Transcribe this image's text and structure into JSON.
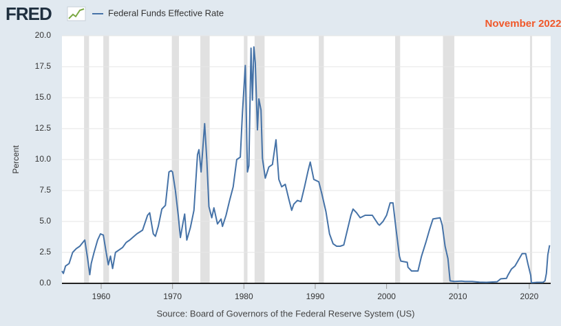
{
  "logo": "FRED",
  "chart_data": {
    "type": "line",
    "annotation": "November 2022",
    "ylabel": "Percent",
    "source": "Source: Board of Governors of the Federal Reserve System (US)",
    "grid": true,
    "xlim": [
      1954.5,
      2023.0
    ],
    "ylim": [
      0,
      20
    ],
    "xticks": [
      1960,
      1970,
      1980,
      1990,
      2000,
      2010,
      2020
    ],
    "yticks": [
      {
        "value": 0,
        "label": "0.0"
      },
      {
        "value": 2.5,
        "label": "2.5"
      },
      {
        "value": 5,
        "label": "5.0"
      },
      {
        "value": 7.5,
        "label": "7.5"
      },
      {
        "value": 10,
        "label": "10.0"
      },
      {
        "value": 12.5,
        "label": "12.5"
      },
      {
        "value": 15,
        "label": "15.0"
      },
      {
        "value": 17.5,
        "label": "17.5"
      },
      {
        "value": 20,
        "label": "20.0"
      }
    ],
    "recession_color": "#e1e1e1",
    "recessions": [
      [
        1957.6,
        1958.3
      ],
      [
        1960.3,
        1961.1
      ],
      [
        1969.9,
        1970.9
      ],
      [
        1973.9,
        1975.2
      ],
      [
        1980.0,
        1980.5
      ],
      [
        1981.5,
        1982.9
      ],
      [
        1990.5,
        1991.2
      ],
      [
        2001.2,
        2001.9
      ],
      [
        2007.9,
        2009.5
      ],
      [
        2020.1,
        2020.4
      ]
    ],
    "x": [
      1954.5,
      1954.7,
      1955,
      1955.5,
      1956,
      1956.5,
      1957,
      1957.7,
      1958.1,
      1958.4,
      1958.6,
      1959,
      1959.5,
      1959.9,
      1960.3,
      1960.7,
      1961,
      1961.3,
      1961.6,
      1962,
      1962.5,
      1963,
      1963.5,
      1964,
      1965,
      1965.8,
      1966.5,
      1966.8,
      1967.3,
      1967.6,
      1968,
      1968.5,
      1969,
      1969.5,
      1969.8,
      1970,
      1970.4,
      1970.8,
      1971.1,
      1971.5,
      1971.7,
      1972,
      1972.5,
      1973,
      1973.5,
      1973.7,
      1974,
      1974.5,
      1974.8,
      1975.1,
      1975.5,
      1975.8,
      1976.3,
      1976.8,
      1977,
      1977.5,
      1978,
      1978.5,
      1979,
      1979.5,
      1979.8,
      1980.2,
      1980.5,
      1980.7,
      1981,
      1981.2,
      1981.4,
      1981.6,
      1981.9,
      1982.1,
      1982.4,
      1982.6,
      1983,
      1983.5,
      1984,
      1984.5,
      1984.9,
      1985.3,
      1985.8,
      1986.3,
      1986.7,
      1987,
      1987.5,
      1988,
      1988.5,
      1989,
      1989.3,
      1989.8,
      1990.5,
      1990.9,
      1991.5,
      1992,
      1992.5,
      1993,
      1993.5,
      1994,
      1994.5,
      1995,
      1995.3,
      1995.8,
      1996.3,
      1997,
      1998,
      1998.8,
      1999,
      1999.5,
      2000,
      2000.5,
      2000.9,
      2001.3,
      2001.8,
      2002,
      2002.9,
      2003,
      2003.5,
      2004.4,
      2004.9,
      2005.5,
      2006,
      2006.5,
      2007.5,
      2007.8,
      2008.2,
      2008.6,
      2008.9,
      2009.5,
      2010.5,
      2011,
      2012,
      2013,
      2014,
      2015.5,
      2016,
      2016.8,
      2017,
      2017.5,
      2018,
      2018.5,
      2019,
      2019.5,
      2019.8,
      2020.2,
      2020.3,
      2021,
      2021.9,
      2022.2,
      2022.4,
      2022.6,
      2022.85
    ],
    "series": [
      {
        "name": "Federal Funds Effective Rate",
        "color": "#4572a7",
        "values": [
          1.0,
          0.8,
          1.4,
          1.6,
          2.5,
          2.8,
          3.0,
          3.5,
          2.0,
          0.7,
          1.6,
          2.5,
          3.5,
          4.0,
          3.9,
          2.5,
          1.5,
          2.2,
          1.2,
          2.5,
          2.7,
          2.9,
          3.3,
          3.5,
          4.0,
          4.3,
          5.5,
          5.7,
          4.0,
          3.8,
          4.6,
          6.0,
          6.3,
          9.0,
          9.1,
          9.0,
          7.5,
          5.5,
          3.7,
          5.0,
          5.6,
          3.5,
          4.5,
          5.9,
          10.4,
          10.8,
          9.0,
          12.9,
          10.0,
          6.2,
          5.3,
          6.1,
          4.8,
          5.2,
          4.6,
          5.5,
          6.7,
          7.8,
          10.0,
          10.2,
          13.8,
          17.6,
          9.0,
          9.5,
          19.0,
          14.8,
          19.1,
          17.8,
          12.4,
          14.9,
          14.0,
          10.1,
          8.5,
          9.4,
          9.6,
          11.6,
          8.4,
          7.8,
          8.0,
          6.8,
          5.9,
          6.4,
          6.7,
          6.6,
          7.8,
          9.1,
          9.8,
          8.4,
          8.2,
          7.3,
          5.8,
          4.0,
          3.2,
          3.0,
          3.0,
          3.1,
          4.3,
          5.5,
          6.0,
          5.7,
          5.3,
          5.5,
          5.5,
          4.8,
          4.7,
          5.0,
          5.5,
          6.5,
          6.5,
          4.5,
          2.2,
          1.8,
          1.7,
          1.3,
          1.0,
          1.0,
          2.2,
          3.3,
          4.3,
          5.2,
          5.3,
          4.7,
          3.0,
          2.0,
          0.2,
          0.15,
          0.18,
          0.15,
          0.15,
          0.1,
          0.08,
          0.13,
          0.37,
          0.4,
          0.65,
          1.15,
          1.4,
          1.9,
          2.4,
          2.4,
          1.6,
          0.65,
          0.05,
          0.08,
          0.08,
          0.2,
          0.8,
          2.3,
          3.08
        ]
      }
    ]
  }
}
